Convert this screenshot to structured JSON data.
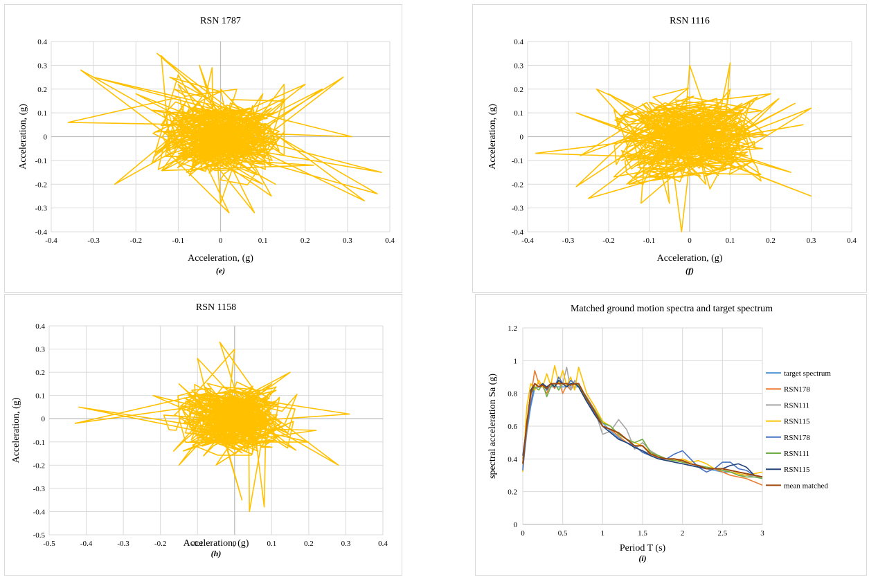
{
  "colors": {
    "orbit": "#ffc000",
    "grid": "#d9d9d9",
    "axis": "#bfbfbf",
    "series": [
      "#5b9bd5",
      "#ed7d31",
      "#a5a5a5",
      "#ffc000",
      "#4472c4",
      "#70ad47",
      "#264478",
      "#9e480e"
    ]
  },
  "chart_data": [
    {
      "type": "scatter",
      "title": "RSN 1787",
      "xlabel": "Acceleration, (g)",
      "ylabel": "Acceleration, (g)",
      "caption": "(e)",
      "xlim": [
        -0.4,
        0.4
      ],
      "ylim": [
        -0.4,
        0.4
      ],
      "xticks": [
        "-0.4",
        "-0.3",
        "-0.2",
        "-0.1",
        "0",
        "0.1",
        "0.2",
        "0.3",
        "0.4"
      ],
      "yticks": [
        "-0.4",
        "-0.3",
        "-0.2",
        "-0.1",
        "0",
        "0.1",
        "0.2",
        "0.3",
        "0.4"
      ],
      "grid": true,
      "orbit": {
        "x": [
          0,
          0.05,
          -0.08,
          0.12,
          -0.2,
          0.22,
          -0.3,
          0.1,
          0.31,
          -0.15,
          -0.33,
          0.02,
          0.38,
          0.2,
          -0.05,
          0.1,
          -0.25,
          -0.36,
          -0.1,
          0.15,
          0.24,
          0.29,
          -0.14,
          -0.12,
          -0.1,
          0.0,
          -0.02,
          0.15,
          0.37,
          0.34,
          0.12,
          -0.02,
          0.0,
          0.08,
          0.13,
          0.05,
          -0.05,
          0.02
        ],
        "y": [
          0,
          0.08,
          -0.15,
          0.12,
          0.18,
          -0.12,
          0.25,
          -0.2,
          0.0,
          0.35,
          0.28,
          -0.32,
          -0.15,
          0.22,
          0.3,
          0.18,
          -0.2,
          0.06,
          0.22,
          0.16,
          0.2,
          0.25,
          0.34,
          0.25,
          0.26,
          0.2,
          0.29,
          0.22,
          -0.24,
          -0.27,
          -0.25,
          -0.12,
          -0.28,
          -0.32,
          -0.2,
          -0.05,
          0.05,
          0.0
        ]
      }
    },
    {
      "type": "scatter",
      "title": "RSN 1116",
      "xlabel": "Acceleration, (g)",
      "ylabel": "Acceleration, (g)",
      "caption": "(f)",
      "xlim": [
        -0.4,
        0.4
      ],
      "ylim": [
        -0.4,
        0.4
      ],
      "xticks": [
        "-0.4",
        "-0.3",
        "-0.2",
        "-0.1",
        "0",
        "0.1",
        "0.2",
        "0.3",
        "0.4"
      ],
      "yticks": [
        "-0.4",
        "-0.3",
        "-0.2",
        "-0.1",
        "0",
        "0.1",
        "0.2",
        "0.3",
        "0.4"
      ],
      "grid": true,
      "orbit": {
        "x": [
          0,
          0.06,
          -0.1,
          0.15,
          -0.2,
          0.25,
          -0.28,
          0.3,
          -0.38,
          0.2,
          -0.15,
          0.0,
          0.1,
          -0.28,
          0.28,
          -0.23,
          0.22,
          0.1,
          -0.05,
          -0.02,
          0.04,
          0.26,
          0.3,
          0.18,
          0.05,
          -0.12,
          -0.25,
          -0.27,
          0.12,
          0.0,
          -0.05,
          0.03
        ],
        "y": [
          0,
          0.1,
          -0.12,
          0.15,
          0.18,
          -0.15,
          0.1,
          -0.25,
          -0.07,
          0.18,
          -0.2,
          0.3,
          0.31,
          -0.21,
          0.05,
          0.2,
          0.16,
          0.2,
          -0.28,
          -0.4,
          -0.2,
          0.14,
          0.12,
          -0.05,
          -0.22,
          -0.28,
          -0.26,
          -0.08,
          0.1,
          0.0,
          0.05,
          0.0
        ]
      }
    },
    {
      "type": "scatter",
      "title": "RSN 1158",
      "xlabel": "Acceleration, (g)",
      "ylabel": "Acceleration, (g)",
      "caption": "(h)",
      "xlim": [
        -0.5,
        0.4
      ],
      "ylim": [
        -0.5,
        0.4
      ],
      "xticks": [
        "-0.5",
        "-0.4",
        "-0.3",
        "-0.2",
        "-0.1",
        "0",
        "0.1",
        "0.2",
        "0.3",
        "0.4"
      ],
      "yticks": [
        "-0.5",
        "-0.4",
        "-0.3",
        "-0.2",
        "-0.1",
        "0",
        "0.1",
        "0.2",
        "0.3",
        "0.4"
      ],
      "grid": true,
      "orbit": {
        "x": [
          0,
          0.05,
          -0.08,
          0.1,
          -0.15,
          0.2,
          -0.22,
          0.28,
          -0.42,
          0.31,
          -0.1,
          -0.04,
          0.0,
          0.1,
          -0.1,
          -0.43,
          0.22,
          0.15,
          0.02,
          0.04,
          0.08,
          -0.05,
          -0.12,
          -0.15,
          0.06,
          0.0
        ],
        "y": [
          0,
          0.06,
          -0.1,
          0.12,
          0.15,
          -0.1,
          0.1,
          -0.2,
          0.05,
          0.02,
          0.26,
          0.33,
          0.3,
          0.15,
          0.1,
          -0.02,
          -0.05,
          0.2,
          -0.35,
          -0.4,
          -0.38,
          -0.2,
          -0.1,
          -0.2,
          -0.05,
          0.0
        ]
      }
    },
    {
      "type": "line",
      "title": "Matched ground motion spectra and target spectrum",
      "xlabel": "Period T (s)",
      "ylabel": "spectral acceleration Sa (g)",
      "caption": "(i)",
      "xlim": [
        0,
        3
      ],
      "ylim": [
        0,
        1.2
      ],
      "xticks": [
        "0",
        "0.5",
        "1",
        "1.5",
        "2",
        "2.5",
        "3"
      ],
      "yticks": [
        "0",
        "0.2",
        "0.4",
        "0.6",
        "0.8",
        "1",
        "1.2"
      ],
      "grid": true,
      "legend_position": "right",
      "x": [
        0,
        0.05,
        0.1,
        0.15,
        0.2,
        0.25,
        0.3,
        0.35,
        0.4,
        0.45,
        0.5,
        0.55,
        0.6,
        0.65,
        0.7,
        0.8,
        0.9,
        1.0,
        1.1,
        1.2,
        1.3,
        1.4,
        1.5,
        1.6,
        1.7,
        1.8,
        1.9,
        2.0,
        2.1,
        2.2,
        2.3,
        2.4,
        2.5,
        2.6,
        2.7,
        2.8,
        2.9,
        3.0
      ],
      "series": [
        {
          "name": "target spectrum",
          "values": [
            0.34,
            0.56,
            0.72,
            0.83,
            0.84,
            0.84,
            0.84,
            0.84,
            0.84,
            0.84,
            0.84,
            0.84,
            0.84,
            0.84,
            0.84,
            0.76,
            0.68,
            0.62,
            0.57,
            0.53,
            0.5,
            0.47,
            0.45,
            0.43,
            0.41,
            0.4,
            0.38,
            0.37,
            0.36,
            0.35,
            0.34,
            0.33,
            0.32,
            0.32,
            0.31,
            0.3,
            0.3,
            0.29
          ]
        },
        {
          "name": "RSN178",
          "values": [
            0.36,
            0.58,
            0.78,
            0.94,
            0.86,
            0.84,
            0.8,
            0.86,
            0.83,
            0.88,
            0.8,
            0.85,
            0.82,
            0.86,
            0.84,
            0.75,
            0.7,
            0.6,
            0.58,
            0.54,
            0.5,
            0.48,
            0.44,
            0.43,
            0.42,
            0.4,
            0.4,
            0.38,
            0.37,
            0.36,
            0.35,
            0.34,
            0.32,
            0.3,
            0.29,
            0.28,
            0.26,
            0.24
          ]
        },
        {
          "name": "RSN111",
          "values": [
            0.35,
            0.6,
            0.8,
            0.86,
            0.84,
            0.86,
            0.82,
            0.85,
            0.84,
            0.87,
            0.86,
            0.96,
            0.82,
            0.88,
            0.84,
            0.78,
            0.7,
            0.55,
            0.57,
            0.64,
            0.58,
            0.46,
            0.5,
            0.45,
            0.42,
            0.4,
            0.38,
            0.37,
            0.36,
            0.35,
            0.34,
            0.34,
            0.33,
            0.32,
            0.3,
            0.3,
            0.29,
            0.29
          ]
        },
        {
          "name": "RSN115",
          "values": [
            0.32,
            0.72,
            0.86,
            0.82,
            0.88,
            0.84,
            0.92,
            0.85,
            0.97,
            0.86,
            0.94,
            0.85,
            0.9,
            0.82,
            0.96,
            0.8,
            0.72,
            0.63,
            0.6,
            0.55,
            0.52,
            0.5,
            0.48,
            0.44,
            0.42,
            0.4,
            0.39,
            0.4,
            0.38,
            0.39,
            0.37,
            0.34,
            0.33,
            0.32,
            0.31,
            0.3,
            0.31,
            0.32
          ]
        },
        {
          "name": "RSN178",
          "values": [
            0.33,
            0.6,
            0.74,
            0.86,
            0.84,
            0.86,
            0.82,
            0.86,
            0.84,
            0.9,
            0.86,
            0.84,
            0.88,
            0.86,
            0.84,
            0.76,
            0.68,
            0.6,
            0.56,
            0.52,
            0.5,
            0.48,
            0.44,
            0.42,
            0.4,
            0.4,
            0.43,
            0.45,
            0.4,
            0.35,
            0.32,
            0.34,
            0.38,
            0.38,
            0.34,
            0.33,
            0.3,
            0.29
          ]
        },
        {
          "name": "RSN111",
          "values": [
            0.4,
            0.62,
            0.8,
            0.84,
            0.82,
            0.86,
            0.78,
            0.84,
            0.86,
            0.82,
            0.86,
            0.84,
            0.86,
            0.86,
            0.85,
            0.76,
            0.7,
            0.62,
            0.6,
            0.55,
            0.52,
            0.5,
            0.52,
            0.44,
            0.42,
            0.4,
            0.39,
            0.38,
            0.37,
            0.36,
            0.35,
            0.34,
            0.33,
            0.32,
            0.3,
            0.29,
            0.29,
            0.28
          ]
        },
        {
          "name": "RSN115",
          "values": [
            0.42,
            0.6,
            0.82,
            0.86,
            0.84,
            0.86,
            0.84,
            0.86,
            0.84,
            0.88,
            0.86,
            0.84,
            0.86,
            0.86,
            0.84,
            0.75,
            0.67,
            0.6,
            0.56,
            0.52,
            0.5,
            0.47,
            0.45,
            0.42,
            0.4,
            0.39,
            0.38,
            0.37,
            0.36,
            0.35,
            0.34,
            0.34,
            0.34,
            0.36,
            0.37,
            0.35,
            0.3,
            0.29
          ]
        },
        {
          "name": "mean matched",
          "values": [
            0.37,
            0.62,
            0.8,
            0.86,
            0.84,
            0.85,
            0.83,
            0.86,
            0.86,
            0.86,
            0.86,
            0.86,
            0.85,
            0.86,
            0.86,
            0.77,
            0.69,
            0.6,
            0.58,
            0.56,
            0.52,
            0.48,
            0.48,
            0.43,
            0.41,
            0.4,
            0.4,
            0.39,
            0.37,
            0.36,
            0.34,
            0.34,
            0.34,
            0.33,
            0.32,
            0.31,
            0.3,
            0.29
          ]
        }
      ]
    }
  ]
}
